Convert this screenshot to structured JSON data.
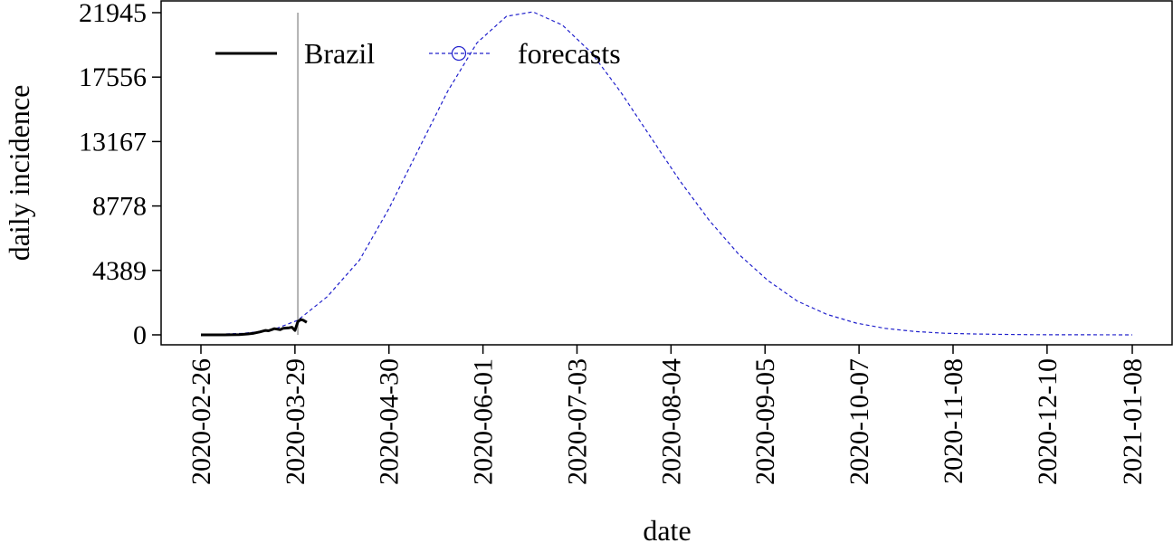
{
  "chart_data": {
    "type": "line",
    "title": "",
    "xlabel": "date",
    "ylabel": "daily incidence",
    "x_range": [
      "2020-02-26",
      "2021-01-08"
    ],
    "ylim": [
      0,
      21945
    ],
    "y_ticks": [
      0,
      4389,
      8778,
      13167,
      17556,
      21945
    ],
    "x_ticks": [
      "2020-02-26",
      "2020-03-29",
      "2020-04-30",
      "2020-06-01",
      "2020-07-03",
      "2020-08-04",
      "2020-09-05",
      "2020-10-07",
      "2020-11-08",
      "2020-12-10",
      "2021-01-08"
    ],
    "vertical_line_date": "2020-03-30",
    "grid": false,
    "legend_position": "top-left",
    "series": [
      {
        "name": "Brazil",
        "style": "solid",
        "color": "#000000",
        "x": [
          "2020-02-26",
          "2020-03-05",
          "2020-03-10",
          "2020-03-13",
          "2020-03-15",
          "2020-03-17",
          "2020-03-19",
          "2020-03-20",
          "2020-03-22",
          "2020-03-24",
          "2020-03-25",
          "2020-03-27",
          "2020-03-28",
          "2020-03-29",
          "2020-03-30",
          "2020-03-31",
          "2020-04-01",
          "2020-04-02"
        ],
        "y": [
          0,
          0,
          20,
          60,
          110,
          200,
          300,
          280,
          420,
          350,
          450,
          480,
          520,
          300,
          900,
          1050,
          980,
          850
        ]
      },
      {
        "name": "forecasts",
        "style": "dashed",
        "color": "#2020cc",
        "x": [
          "2020-02-26",
          "2020-03-11",
          "2020-03-21",
          "2020-03-30",
          "2020-04-09",
          "2020-04-20",
          "2020-04-30",
          "2020-05-10",
          "2020-05-20",
          "2020-05-30",
          "2020-06-09",
          "2020-06-18",
          "2020-06-28",
          "2020-07-08",
          "2020-07-18",
          "2020-07-28",
          "2020-08-07",
          "2020-08-17",
          "2020-08-27",
          "2020-09-06",
          "2020-09-16",
          "2020-09-26",
          "2020-10-06",
          "2020-10-16",
          "2020-10-26",
          "2020-11-05",
          "2020-11-15",
          "2020-11-25",
          "2020-12-05",
          "2020-12-15",
          "2020-12-25",
          "2021-01-08"
        ],
        "y": [
          0,
          100,
          300,
          1000,
          2600,
          5100,
          8600,
          12600,
          16600,
          19900,
          21700,
          22000,
          21100,
          19200,
          16500,
          13500,
          10500,
          7800,
          5500,
          3700,
          2300,
          1400,
          800,
          440,
          230,
          110,
          60,
          30,
          15,
          8,
          4,
          0
        ]
      }
    ]
  }
}
